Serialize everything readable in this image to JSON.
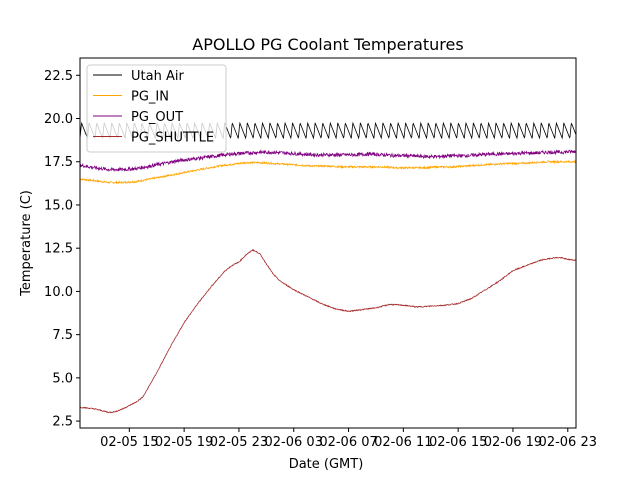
{
  "chart_data": {
    "type": "line",
    "title": "APOLLO PG Coolant Temperatures",
    "xlabel": "Date (GMT)",
    "ylabel": "Temperature (C)",
    "x_unit": "hours since 02-05 00:00 GMT",
    "xlim": [
      11.4,
      47.6
    ],
    "ylim": [
      2.1,
      23.5
    ],
    "grid": false,
    "legend_position": "upper-left",
    "x_ticks": [
      {
        "value": 15,
        "label": "02-05 15"
      },
      {
        "value": 19,
        "label": "02-05 19"
      },
      {
        "value": 23,
        "label": "02-05 23"
      },
      {
        "value": 27,
        "label": "02-06 03"
      },
      {
        "value": 31,
        "label": "02-06 07"
      },
      {
        "value": 35,
        "label": "02-06 11"
      },
      {
        "value": 39,
        "label": "02-06 15"
      },
      {
        "value": 43,
        "label": "02-06 19"
      },
      {
        "value": 47,
        "label": "02-06 23"
      }
    ],
    "y_ticks": [
      {
        "value": 2.5,
        "label": "2.5"
      },
      {
        "value": 5.0,
        "label": "5.0"
      },
      {
        "value": 7.5,
        "label": "7.5"
      },
      {
        "value": 10.0,
        "label": "10.0"
      },
      {
        "value": 12.5,
        "label": "12.5"
      },
      {
        "value": 15.0,
        "label": "15.0"
      },
      {
        "value": 17.5,
        "label": "17.5"
      },
      {
        "value": 20.0,
        "label": "20.0"
      },
      {
        "value": 22.5,
        "label": "22.5"
      }
    ],
    "series": [
      {
        "name": "Utah Air",
        "color": "#000000",
        "style": "sawtooth",
        "x": [
          11.4,
          47.6
        ],
        "y": [
          19.3,
          19.3
        ],
        "oscillation_amplitude": 0.45,
        "oscillation_period_hours": 0.55
      },
      {
        "name": "PG_IN",
        "color": "#ffa500",
        "x": [
          11.4,
          12.5,
          13.5,
          14.5,
          15.5,
          16.5,
          17.5,
          18.5,
          19.5,
          20.5,
          21.5,
          22.5,
          23.5,
          24.5,
          25.5,
          26.5,
          27.5,
          28.5,
          29.5,
          30.5,
          31.5,
          32.5,
          33.5,
          34.5,
          35.5,
          36.5,
          37.5,
          38.5,
          39.5,
          40.5,
          41.5,
          42.5,
          43.5,
          44.5,
          45.5,
          46.5,
          47.6
        ],
        "y": [
          16.5,
          16.4,
          16.3,
          16.3,
          16.35,
          16.5,
          16.65,
          16.8,
          16.95,
          17.1,
          17.25,
          17.35,
          17.45,
          17.45,
          17.4,
          17.35,
          17.3,
          17.25,
          17.25,
          17.2,
          17.2,
          17.2,
          17.2,
          17.15,
          17.15,
          17.15,
          17.2,
          17.2,
          17.25,
          17.3,
          17.35,
          17.4,
          17.4,
          17.45,
          17.5,
          17.5,
          17.5
        ],
        "noise": 0.05
      },
      {
        "name": "PG_OUT",
        "color": "#800080",
        "x": [
          11.4,
          12.5,
          13.5,
          14.5,
          15.5,
          16.5,
          17.5,
          18.5,
          19.5,
          20.5,
          21.5,
          22.5,
          23.5,
          24.5,
          25.5,
          26.5,
          27.5,
          28.5,
          29.5,
          30.5,
          31.5,
          32.5,
          33.5,
          34.5,
          35.5,
          36.5,
          37.5,
          38.5,
          39.5,
          40.5,
          41.5,
          42.5,
          43.5,
          44.5,
          45.5,
          46.5,
          47.6
        ],
        "y": [
          17.3,
          17.15,
          17.05,
          17.05,
          17.1,
          17.25,
          17.4,
          17.55,
          17.65,
          17.75,
          17.85,
          17.95,
          18.0,
          18.05,
          18.05,
          18.0,
          17.95,
          17.9,
          17.9,
          17.9,
          17.9,
          17.95,
          17.9,
          17.85,
          17.85,
          17.8,
          17.8,
          17.85,
          17.85,
          17.9,
          17.95,
          17.95,
          18.0,
          18.0,
          18.05,
          18.05,
          18.1
        ],
        "noise": 0.1
      },
      {
        "name": "PG_SHUTTLE",
        "color": "#a52a2a",
        "x": [
          11.4,
          12.0,
          12.5,
          13.0,
          13.5,
          14.0,
          14.5,
          15.0,
          15.5,
          16.0,
          17.0,
          18.0,
          19.0,
          20.0,
          21.0,
          22.0,
          22.5,
          23.0,
          23.5,
          24.0,
          24.5,
          25.0,
          25.5,
          26.0,
          27.0,
          28.0,
          29.0,
          30.0,
          31.0,
          32.0,
          33.0,
          34.0,
          35.0,
          36.0,
          37.0,
          38.0,
          39.0,
          40.0,
          41.0,
          42.0,
          43.0,
          44.0,
          45.0,
          46.0,
          46.5,
          47.0,
          47.6
        ],
        "y": [
          3.3,
          3.25,
          3.2,
          3.1,
          3.0,
          3.05,
          3.2,
          3.4,
          3.6,
          3.9,
          5.3,
          6.8,
          8.2,
          9.3,
          10.3,
          11.2,
          11.5,
          11.7,
          12.1,
          12.4,
          12.2,
          11.6,
          11.0,
          10.6,
          10.1,
          9.7,
          9.3,
          9.0,
          8.85,
          8.95,
          9.05,
          9.25,
          9.2,
          9.1,
          9.15,
          9.2,
          9.3,
          9.6,
          10.1,
          10.6,
          11.2,
          11.5,
          11.8,
          11.95,
          11.95,
          11.85,
          11.8
        ],
        "noise": 0.03
      }
    ]
  }
}
